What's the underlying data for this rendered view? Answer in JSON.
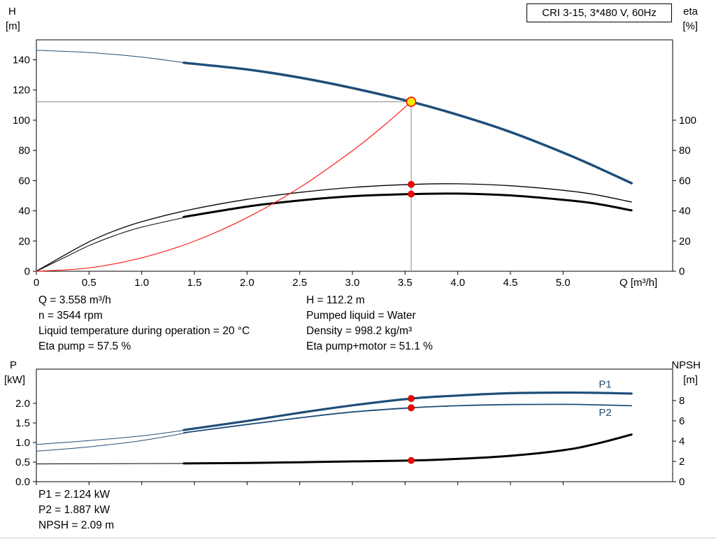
{
  "axis_labels": {
    "h": "H",
    "h_unit": "[m]",
    "eta": "eta",
    "eta_unit": "[%]",
    "q": "Q [m³/h]",
    "p": "P",
    "p_unit": "[kW]",
    "npsh": "NPSH",
    "npsh_unit": "[m]"
  },
  "duty_info": {
    "left": [
      "Q = 3.558 m³/h",
      "n = 3544 rpm",
      "Liquid temperature during operation = 20 °C",
      "Eta pump = 57.5 %"
    ],
    "right": [
      "H = 112.2 m",
      "Pumped liquid = Water",
      "Density = 998.2 kg/m³",
      "Eta pump+motor = 51.1 %"
    ]
  },
  "power_info": [
    "P1 = 2.124 kW",
    "P2 = 1.887 kW",
    "NPSH = 2.09 m"
  ],
  "colors": {
    "curve_blue": "#1f4e79",
    "curve_black": "#000000",
    "system_red": "#ff2020",
    "marker_red": "#ff0000",
    "marker_red_edge": "#b00000",
    "duty_point_fill": "#ffeb00",
    "crosshair_gray": "#8a8a8a",
    "label_blue": "#1f4e79"
  },
  "chart_data": [
    {
      "type": "line",
      "title": "CRI 3-15, 3*480 V, 60Hz",
      "x_axis": {
        "label": "Q [m³/h]",
        "min": 0,
        "max": 6.04,
        "ticks": [
          0,
          0.5,
          1,
          1.5,
          2,
          2.5,
          3,
          3.5,
          4,
          4.5,
          5
        ],
        "tick_labels": [
          "0",
          "0.5",
          "1.0",
          "1.5",
          "2.0",
          "2.5",
          "3.0",
          "3.5",
          "4.0",
          "4.5",
          "5.0"
        ]
      },
      "y_left": {
        "label": "H [m]",
        "min": 0,
        "max": 153.2,
        "ticks": [
          0,
          20,
          40,
          60,
          80,
          100,
          120,
          140
        ],
        "tick_labels": [
          "0",
          "20",
          "40",
          "60",
          "80",
          "100",
          "120",
          "140"
        ]
      },
      "y_right": {
        "label": "eta [%]",
        "min": 0,
        "max": 153.2,
        "ticks": [
          0,
          20,
          40,
          60,
          80,
          100
        ],
        "tick_labels": [
          "0",
          "20",
          "40",
          "60",
          "80",
          "100"
        ]
      },
      "crosshair": {
        "x": 3.558,
        "v": 112.2,
        "axis": "left"
      },
      "series": [
        {
          "name": "head-curve-lead",
          "color": "#1f4e79",
          "width": 1,
          "axis": "left",
          "points": [
            [
              0,
              146.3
            ],
            [
              0.5,
              144.8
            ],
            [
              1,
              141.8
            ],
            [
              1.45,
              137.6
            ]
          ]
        },
        {
          "name": "head-curve",
          "color": "#1f4e79",
          "width": 3.5,
          "axis": "left",
          "points": [
            [
              1.4,
              138
            ],
            [
              2,
              133.6
            ],
            [
              2.5,
              128.2
            ],
            [
              3,
              121.3
            ],
            [
              3.558,
              112.2
            ],
            [
              4,
              103.6
            ],
            [
              4.5,
              92.2
            ],
            [
              5,
              78.6
            ],
            [
              5.3,
              69.5
            ],
            [
              5.65,
              58.3
            ]
          ]
        },
        {
          "name": "eta-pump-curve",
          "color": "#000000",
          "width": 1.3,
          "axis": "right",
          "points": [
            [
              0,
              0
            ],
            [
              0.25,
              10
            ],
            [
              0.5,
              19.5
            ],
            [
              0.75,
              27
            ],
            [
              1,
              32.8
            ],
            [
              1.45,
              40.6
            ],
            [
              2,
              47.6
            ],
            [
              2.5,
              52.2
            ],
            [
              3,
              55.5
            ],
            [
              3.558,
              57.5
            ],
            [
              4,
              57.9
            ],
            [
              4.5,
              56.6
            ],
            [
              5,
              53.6
            ],
            [
              5.3,
              50.8
            ],
            [
              5.65,
              45.8
            ]
          ]
        },
        {
          "name": "eta-pump-motor-curve-lead",
          "color": "#000000",
          "width": 1,
          "axis": "right",
          "points": [
            [
              0,
              0
            ],
            [
              0.25,
              8.5
            ],
            [
              0.5,
              17
            ],
            [
              0.75,
              23.8
            ],
            [
              1,
              29.2
            ],
            [
              1.45,
              36.3
            ]
          ]
        },
        {
          "name": "eta-pump-motor-curve",
          "color": "#000000",
          "width": 3,
          "axis": "right",
          "points": [
            [
              1.4,
              36
            ],
            [
              2,
              42.8
            ],
            [
              2.5,
              46.9
            ],
            [
              3,
              49.7
            ],
            [
              3.558,
              51.1
            ],
            [
              4,
              51.4
            ],
            [
              4.5,
              50.2
            ],
            [
              5,
              47.3
            ],
            [
              5.3,
              44.9
            ],
            [
              5.65,
              40.3
            ]
          ]
        },
        {
          "name": "system-curve",
          "color": "#ff2020",
          "width": 1.2,
          "axis": "left",
          "points": [
            [
              0,
              0
            ],
            [
              0.5,
              2.2
            ],
            [
              1,
              8.9
            ],
            [
              1.5,
              19.9
            ],
            [
              2,
              35.5
            ],
            [
              2.5,
              55.4
            ],
            [
              3,
              79.8
            ],
            [
              3.3,
              96.5
            ],
            [
              3.558,
              112.2
            ]
          ]
        }
      ],
      "markers": [
        {
          "name": "duty-point",
          "x": 3.558,
          "v": 112.2,
          "axis": "left",
          "r": 6.5,
          "fill": "#ffeb00",
          "stroke": "#ff0000",
          "sw": 1.6,
          "interactable": true
        },
        {
          "name": "eta-pump-point",
          "x": 3.558,
          "v": 57.5,
          "axis": "right",
          "r": 4.5,
          "fill": "#ff0000",
          "stroke": "#b00000",
          "sw": 0.8
        },
        {
          "name": "eta-pump-motor-point",
          "x": 3.558,
          "v": 51.1,
          "axis": "right",
          "r": 4.5,
          "fill": "#ff0000",
          "stroke": "#b00000",
          "sw": 0.8
        }
      ]
    },
    {
      "type": "line",
      "title": "",
      "x_axis": {
        "label": "Q [m³/h]",
        "min": 0,
        "max": 6.04,
        "ticks": [
          0,
          0.5,
          1,
          1.5,
          2,
          2.5,
          3,
          3.5,
          4,
          4.5,
          5
        ],
        "tick_labels": null
      },
      "y_left": {
        "label": "P [kW]",
        "min": 0,
        "max": 2.875,
        "ticks": [
          0,
          0.5,
          1,
          1.5,
          2
        ],
        "tick_labels": [
          "0.0",
          "0.5",
          "1.0",
          "1.5",
          "2.0"
        ]
      },
      "y_right": {
        "label": "NPSH [m]",
        "min": 0,
        "max": 11.1,
        "ticks": [
          0,
          2,
          4,
          6,
          8
        ],
        "tick_labels": [
          "0",
          "2",
          "4",
          "6",
          "8"
        ]
      },
      "series": [
        {
          "name": "p1-curve-lead",
          "color": "#1f4e79",
          "width": 1,
          "axis": "left",
          "points": [
            [
              0,
              0.95
            ],
            [
              0.5,
              1.05
            ],
            [
              1,
              1.17
            ],
            [
              1.45,
              1.33
            ]
          ]
        },
        {
          "name": "p1-curve",
          "color": "#1f4e79",
          "width": 3.2,
          "axis": "left",
          "points": [
            [
              1.4,
              1.32
            ],
            [
              2,
              1.55
            ],
            [
              2.5,
              1.76
            ],
            [
              3,
              1.95
            ],
            [
              3.558,
              2.124
            ],
            [
              4,
              2.2
            ],
            [
              4.5,
              2.26
            ],
            [
              5,
              2.275
            ],
            [
              5.3,
              2.27
            ],
            [
              5.65,
              2.25
            ]
          ]
        },
        {
          "name": "p2-curve-lead",
          "color": "#1f4e79",
          "width": 1,
          "axis": "left",
          "points": [
            [
              0,
              0.78
            ],
            [
              0.5,
              0.89
            ],
            [
              1,
              1.05
            ],
            [
              1.45,
              1.26
            ]
          ]
        },
        {
          "name": "p2-curve",
          "color": "#1f4e79",
          "width": 1.8,
          "axis": "left",
          "points": [
            [
              1.4,
              1.25
            ],
            [
              2,
              1.46
            ],
            [
              2.5,
              1.63
            ],
            [
              3,
              1.78
            ],
            [
              3.558,
              1.887
            ],
            [
              4,
              1.94
            ],
            [
              4.5,
              1.97
            ],
            [
              5,
              1.975
            ],
            [
              5.3,
              1.965
            ],
            [
              5.65,
              1.94
            ]
          ]
        },
        {
          "name": "npsh-curve-lead",
          "color": "#000000",
          "width": 1,
          "axis": "right",
          "points": [
            [
              0,
              1.75
            ],
            [
              0.75,
              1.77
            ],
            [
              1.45,
              1.8
            ]
          ]
        },
        {
          "name": "npsh-curve",
          "color": "#000000",
          "width": 3,
          "axis": "right",
          "points": [
            [
              1.4,
              1.8
            ],
            [
              2,
              1.85
            ],
            [
              2.5,
              1.92
            ],
            [
              3,
              2.0
            ],
            [
              3.558,
              2.09
            ],
            [
              4,
              2.25
            ],
            [
              4.5,
              2.55
            ],
            [
              5,
              3.1
            ],
            [
              5.3,
              3.7
            ],
            [
              5.65,
              4.65
            ]
          ]
        }
      ],
      "labels": [
        {
          "text": "P1",
          "x": 5.4,
          "v": 2.4,
          "axis": "left",
          "color": "#1f4e79"
        },
        {
          "text": "P2",
          "x": 5.4,
          "v": 1.68,
          "axis": "left",
          "color": "#1f4e79"
        }
      ],
      "markers": [
        {
          "name": "p1-point",
          "x": 3.558,
          "v": 2.124,
          "axis": "left",
          "r": 4.5,
          "fill": "#ff0000",
          "stroke": "#b00000",
          "sw": 0.8
        },
        {
          "name": "p2-point",
          "x": 3.558,
          "v": 1.887,
          "axis": "left",
          "r": 4.5,
          "fill": "#ff0000",
          "stroke": "#b00000",
          "sw": 0.8
        },
        {
          "name": "npsh-point",
          "x": 3.558,
          "v": 2.09,
          "axis": "right",
          "r": 4.5,
          "fill": "#ff0000",
          "stroke": "#b00000",
          "sw": 0.8
        }
      ]
    }
  ]
}
